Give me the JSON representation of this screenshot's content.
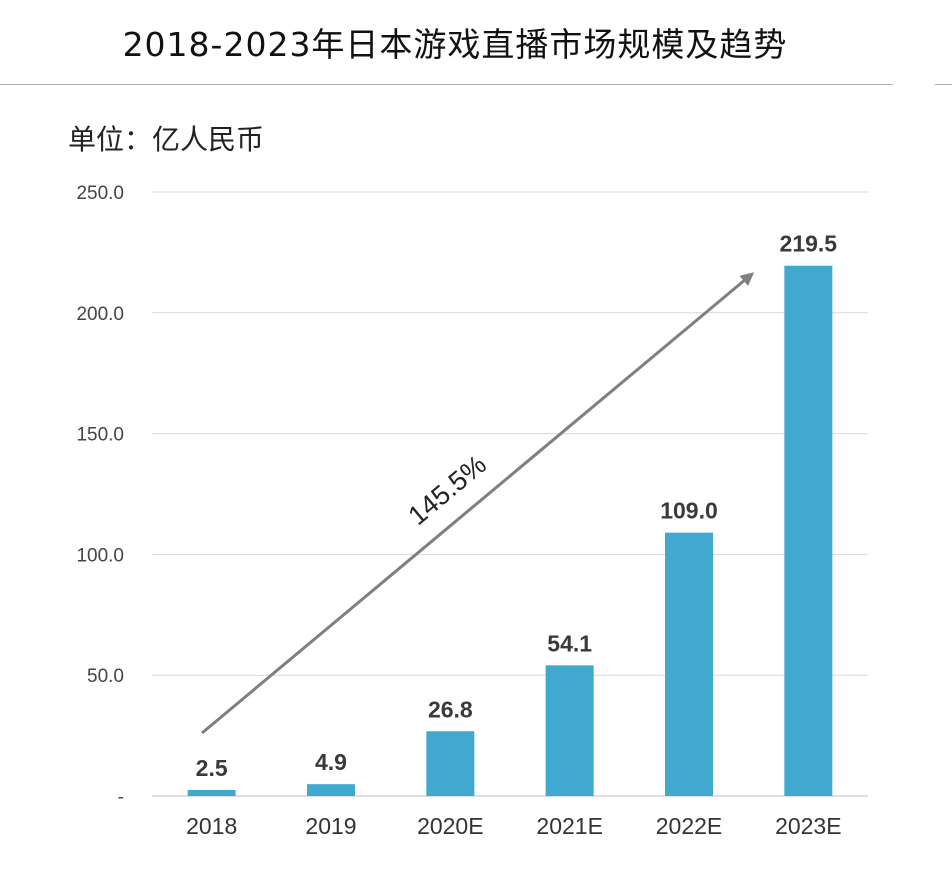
{
  "title": "2018-2023年日本游戏直播市场规模及趋势",
  "unit_label": "单位：亿人民币",
  "colors": {
    "bar": "#41A9CF",
    "arrow": "#7f7f7f",
    "grid": "#d9d9d9"
  },
  "chart_data": {
    "type": "bar",
    "title": "2018-2023年日本游戏直播市场规模及趋势",
    "ylabel": "单位：亿人民币",
    "xlabel": "",
    "categories": [
      "2018",
      "2019",
      "2020E",
      "2021E",
      "2022E",
      "2023E"
    ],
    "values": [
      2.5,
      4.9,
      26.8,
      54.1,
      109.0,
      219.5
    ],
    "data_labels": [
      "2.5",
      "4.9",
      "26.8",
      "54.1",
      "109.0",
      "219.5"
    ],
    "ylim": [
      0,
      250
    ],
    "yticks": [
      0,
      50,
      100,
      150,
      200,
      250
    ],
    "ytick_labels": [
      "-",
      "50.0",
      "100.0",
      "150.0",
      "200.0",
      "250.0"
    ],
    "grid": true,
    "legend": "none",
    "annotation": {
      "text": "145.5%",
      "type": "growth-arrow",
      "from": "2018",
      "to": "2023E"
    }
  }
}
